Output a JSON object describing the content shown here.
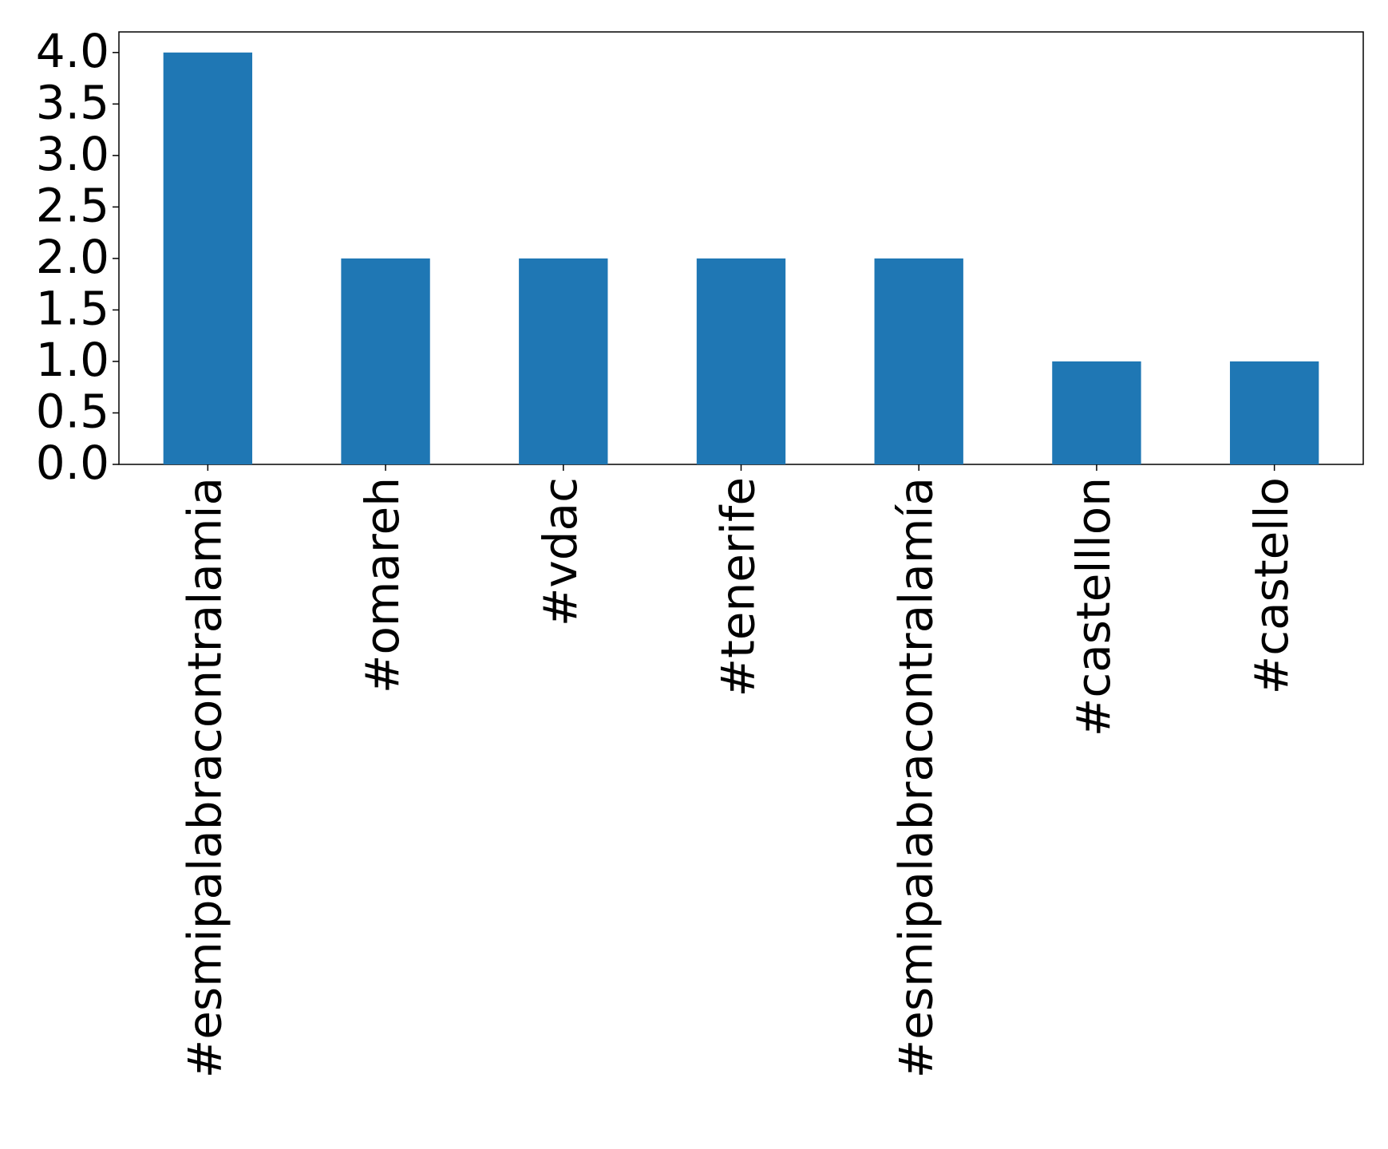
{
  "chart_data": {
    "type": "bar",
    "categories": [
      "#esmipalabracontralamia",
      "#omareh",
      "#vdac",
      "#tenerife",
      "#esmipalabracontralamía",
      "#castelllon",
      "#castello"
    ],
    "values": [
      4,
      2,
      2,
      2,
      2,
      1,
      1
    ],
    "color": "#1f77b4",
    "ylim": [
      0,
      4.2
    ],
    "yticks": [
      {
        "value": 0,
        "label": "0.0"
      },
      0.5,
      {
        "value": 1,
        "label": "1.0"
      },
      1.5,
      {
        "value": 2,
        "label": "2.0"
      },
      2.5,
      {
        "value": 3,
        "label": "3.0"
      },
      3.5,
      {
        "value": 4,
        "label": "4.0"
      }
    ],
    "grid": false
  }
}
